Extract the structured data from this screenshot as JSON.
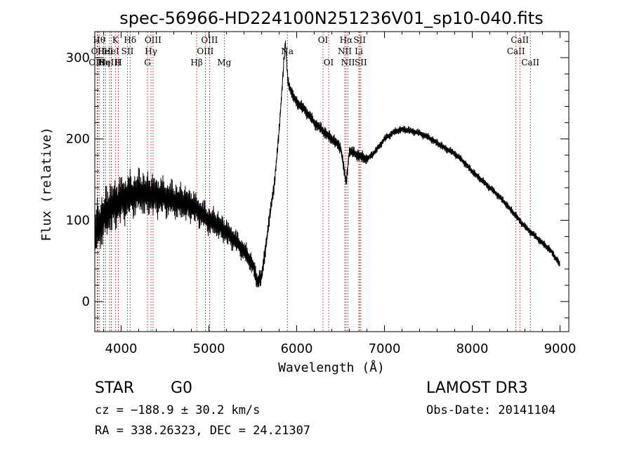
{
  "chart_data": {
    "type": "line",
    "title": "spec-56966-HD224100N251236V01_sp10-040.fits",
    "xlabel": "Wavelength (Å)",
    "ylabel": "Flux (relative)",
    "xlim": [
      3700,
      9100
    ],
    "ylim": [
      -37,
      332
    ],
    "xticks": [
      4000,
      5000,
      6000,
      7000,
      8000,
      9000
    ],
    "yticks": [
      0,
      100,
      200,
      300
    ],
    "grid": false,
    "series": [
      {
        "name": "flux",
        "x": [
          3700,
          3750,
          3800,
          3850,
          3900,
          3950,
          4000,
          4100,
          4200,
          4300,
          4400,
          4500,
          4600,
          4700,
          4800,
          4900,
          5000,
          5100,
          5200,
          5300,
          5400,
          5500,
          5550,
          5600,
          5650,
          5700,
          5750,
          5800,
          5850,
          5870,
          5900,
          5950,
          6000,
          6100,
          6200,
          6300,
          6400,
          6500,
          6563,
          6600,
          6700,
          6800,
          6900,
          7000,
          7100,
          7200,
          7300,
          7400,
          7500,
          7600,
          7700,
          7800,
          7900,
          8000,
          8100,
          8200,
          8300,
          8400,
          8500,
          8600,
          8700,
          8800,
          8900,
          9000
        ],
        "values": [
          80,
          95,
          105,
          112,
          118,
          120,
          125,
          130,
          135,
          132,
          130,
          128,
          125,
          122,
          118,
          110,
          100,
          95,
          85,
          75,
          62,
          45,
          25,
          30,
          70,
          110,
          150,
          210,
          290,
          320,
          270,
          255,
          245,
          235,
          220,
          210,
          200,
          190,
          145,
          185,
          180,
          175,
          185,
          200,
          208,
          212,
          210,
          207,
          202,
          195,
          188,
          182,
          172,
          160,
          150,
          140,
          130,
          118,
          105,
          92,
          82,
          72,
          62,
          45
        ]
      }
    ],
    "line_markers": [
      {
        "wavelength": 3750,
        "label": "Hθ",
        "row": 1
      },
      {
        "wavelength": 3734,
        "label": "OII",
        "row": 2
      },
      {
        "wavelength": 3727,
        "label": "OIII",
        "row": 3
      },
      {
        "wavelength": 3800,
        "label": "Hη",
        "row": 3
      },
      {
        "wavelength": 3820,
        "label": "HeI",
        "row": 2
      },
      {
        "wavelength": 3868,
        "label": "NeIII",
        "row": 3
      },
      {
        "wavelength": 3889,
        "label": "HeI",
        "row": 2
      },
      {
        "wavelength": 3934,
        "label": "K",
        "row": 1
      },
      {
        "wavelength": 3969,
        "label": "H",
        "row": 3
      },
      {
        "wavelength": 4072,
        "label": "SII",
        "row": 2
      },
      {
        "wavelength": 4102,
        "label": "Hδ",
        "row": 1
      },
      {
        "wavelength": 4300,
        "label": "G",
        "row": 3
      },
      {
        "wavelength": 4340,
        "label": "Hγ",
        "row": 2
      },
      {
        "wavelength": 4363,
        "label": "OIII",
        "row": 1
      },
      {
        "wavelength": 4861,
        "label": "Hβ",
        "row": 3
      },
      {
        "wavelength": 4959,
        "label": "OIII",
        "row": 2
      },
      {
        "wavelength": 5007,
        "label": "OIII",
        "row": 1
      },
      {
        "wavelength": 5175,
        "label": "Mg",
        "row": 3
      },
      {
        "wavelength": 5893,
        "label": "Na",
        "row": 2
      },
      {
        "wavelength": 6300,
        "label": "OI",
        "row": 1
      },
      {
        "wavelength": 6364,
        "label": "OI",
        "row": 3
      },
      {
        "wavelength": 6548,
        "label": "NII",
        "row": 2
      },
      {
        "wavelength": 6563,
        "label": "Hα",
        "row": 1
      },
      {
        "wavelength": 6584,
        "label": "NII",
        "row": 3
      },
      {
        "wavelength": 6708,
        "label": "Li",
        "row": 2
      },
      {
        "wavelength": 6717,
        "label": "SII",
        "row": 1
      },
      {
        "wavelength": 6731,
        "label": "SII",
        "row": 3
      },
      {
        "wavelength": 8498,
        "label": "CaII",
        "row": 2
      },
      {
        "wavelength": 8542,
        "label": "CaII",
        "row": 1
      },
      {
        "wavelength": 8662,
        "label": "CaII",
        "row": 3
      }
    ]
  },
  "info": {
    "class_label": "STAR",
    "subclass_label": "G0",
    "survey_label": "LAMOST DR3",
    "cz_label": "cz = −188.9 ± 30.2 km/s",
    "obs_date_label": "Obs-Date: 20141104",
    "radec_label": "RA = 338.26323, DEC =  24.21307"
  },
  "colors": {
    "axes": "#000000",
    "spectrum": "#000000",
    "marker_line": "#b22222",
    "background": "#ffffff"
  }
}
